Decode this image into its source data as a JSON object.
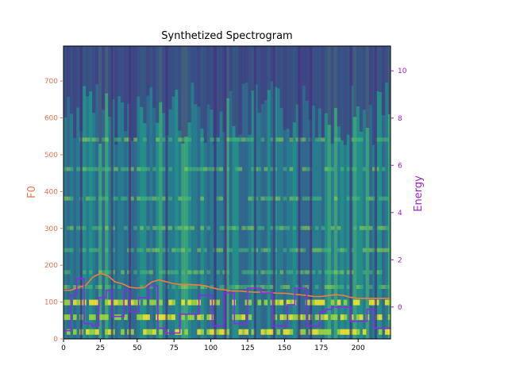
{
  "chart_data": {
    "type": "heatmap",
    "title": "Synthetized Spectrogram",
    "xlabel": "",
    "ylabel_left": "F0",
    "ylabel_right": "Energy",
    "xlim": [
      0,
      222
    ],
    "ylim_left": [
      0,
      795
    ],
    "ylim_right": [
      -1.35,
      11.05
    ],
    "x_ticks": [
      0,
      25,
      50,
      75,
      100,
      125,
      150,
      175,
      200
    ],
    "y_ticks_left": [
      0,
      100,
      200,
      300,
      400,
      500,
      600,
      700
    ],
    "y_ticks_right": [
      0,
      2,
      4,
      6,
      8,
      10
    ],
    "colors": {
      "f0_axis": "#e8734e",
      "f0_line": "#f07d3c",
      "energy_axis": "#9b1fc8",
      "energy_line": "#8a2be2",
      "colormap": "viridis"
    },
    "series": [
      {
        "name": "F0",
        "axis": "left",
        "x": [
          0,
          5,
          10,
          15,
          20,
          25,
          30,
          35,
          40,
          45,
          50,
          55,
          60,
          65,
          70,
          75,
          80,
          85,
          90,
          95,
          100,
          105,
          110,
          115,
          120,
          125,
          130,
          135,
          140,
          145,
          150,
          155,
          160,
          165,
          170,
          175,
          180,
          185,
          190,
          195,
          200,
          205,
          210,
          215,
          222
        ],
        "values": [
          132,
          132,
          140,
          145,
          168,
          178,
          172,
          155,
          150,
          140,
          138,
          140,
          155,
          160,
          155,
          150,
          148,
          148,
          147,
          145,
          140,
          135,
          133,
          130,
          130,
          128,
          127,
          127,
          126,
          124,
          124,
          122,
          120,
          118,
          115,
          115,
          118,
          120,
          118,
          113,
          110,
          110,
          110,
          110,
          110
        ]
      },
      {
        "name": "Energy",
        "axis": "right",
        "steps": [
          [
            0,
            -1.0
          ],
          [
            5,
            0.5
          ],
          [
            9,
            1.2
          ],
          [
            14,
            -0.7
          ],
          [
            19,
            -0.8
          ],
          [
            24,
            0.4
          ],
          [
            29,
            0.7
          ],
          [
            33,
            -0.4
          ],
          [
            41,
            0.7
          ],
          [
            45,
            -0.2
          ],
          [
            51,
            0.4
          ],
          [
            58,
            0.9
          ],
          [
            64,
            -0.9
          ],
          [
            69,
            -1.1
          ],
          [
            79,
            -0.3
          ],
          [
            92,
            0.5
          ],
          [
            101,
            -0.8
          ],
          [
            109,
            0.6
          ],
          [
            116,
            -0.7
          ],
          [
            125,
            0.8
          ],
          [
            134,
            0.6
          ],
          [
            142,
            -0.8
          ],
          [
            152,
            0.1
          ],
          [
            157,
            0.8
          ],
          [
            165,
            -0.8
          ],
          [
            174,
            -0.2
          ],
          [
            178,
            -0.1
          ],
          [
            182,
            0.0
          ],
          [
            195,
            -0.6
          ],
          [
            206,
            -0.1
          ],
          [
            211,
            -0.9
          ],
          [
            222,
            -0.9
          ]
        ]
      }
    ],
    "heatmap": {
      "colormap": "viridis",
      "bright_bands_left_axis": [
        20,
        60,
        100,
        140,
        180,
        240,
        300,
        380,
        460,
        540
      ],
      "dark_columns_x": [
        12,
        33,
        45,
        70,
        103,
        110,
        130,
        143,
        160,
        168,
        195,
        212
      ]
    }
  }
}
